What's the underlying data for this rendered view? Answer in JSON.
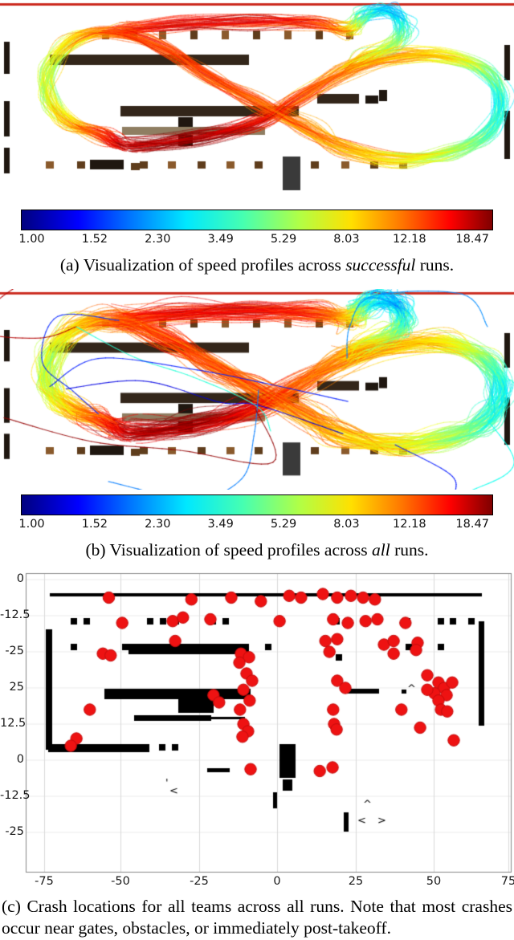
{
  "palette": {
    "b": "#8a5a2c",
    "b2": "#5f3d1c",
    "d": "#1f1710",
    "t": "#33261a",
    "g2": "#8f7e62",
    "g": "#3a3a3a",
    "r": "#cc2a1e",
    "crash_red": "#ee1212",
    "map_black": "#000000",
    "grid": "#d9d9d9"
  },
  "captions": {
    "a": {
      "prefix": "(a) Visualization of speed profiles across ",
      "emph": "successful",
      "suffix": " runs."
    },
    "b": {
      "prefix": "(b) Visualization of speed profiles across ",
      "emph": "all",
      "suffix": " runs."
    },
    "c": "(c) Crash locations for all teams across all runs. Note that most crashes occur near gates, obstacles, or immediately post-takeoff."
  },
  "colorbar": {
    "ticks": [
      "1.00",
      "1.52",
      "2.30",
      "3.49",
      "5.29",
      "8.03",
      "12.18",
      "18.47"
    ],
    "vmin": 1.0,
    "vmax": 18.47,
    "scale": "log",
    "colormap": "jet",
    "quantity": "speed"
  },
  "arena": {
    "map_obstacles": [
      [
        0,
        4,
        640,
        3,
        "r"
      ],
      [
        127,
        38,
        9,
        11,
        "b"
      ],
      [
        162,
        38,
        9,
        11,
        "b2"
      ],
      [
        198,
        38,
        9,
        11,
        "b"
      ],
      [
        237,
        38,
        9,
        11,
        "b2"
      ],
      [
        276,
        38,
        9,
        11,
        "b"
      ],
      [
        315,
        38,
        9,
        11,
        "b2"
      ],
      [
        354,
        38,
        9,
        11,
        "b"
      ],
      [
        393,
        38,
        9,
        11,
        "b2"
      ],
      [
        431,
        38,
        9,
        11,
        "b"
      ],
      [
        5,
        52,
        7,
        40,
        "d"
      ],
      [
        5,
        126,
        7,
        44,
        "d"
      ],
      [
        5,
        184,
        7,
        32,
        "d"
      ],
      [
        628,
        56,
        7,
        44,
        "d"
      ],
      [
        628,
        138,
        7,
        60,
        "d"
      ],
      [
        62,
        68,
        248,
        13,
        "t"
      ],
      [
        150,
        132,
        222,
        13,
        "t"
      ],
      [
        395,
        117,
        52,
        12,
        "t"
      ],
      [
        455,
        119,
        16,
        10,
        "d"
      ],
      [
        472,
        112,
        10,
        14,
        "d"
      ],
      [
        222,
        146,
        18,
        36,
        "d"
      ],
      [
        152,
        158,
        178,
        10,
        "g2"
      ],
      [
        57,
        201,
        10,
        9,
        "b"
      ],
      [
        96,
        201,
        10,
        9,
        "b2"
      ],
      [
        135,
        201,
        10,
        9,
        "b"
      ],
      [
        174,
        201,
        10,
        9,
        "b2"
      ],
      [
        209,
        201,
        10,
        9,
        "b"
      ],
      [
        246,
        201,
        10,
        9,
        "b2"
      ],
      [
        282,
        201,
        10,
        9,
        "b"
      ],
      [
        317,
        201,
        10,
        9,
        "b2"
      ],
      [
        352,
        201,
        10,
        9,
        "b"
      ],
      [
        387,
        201,
        10,
        9,
        "b2"
      ],
      [
        425,
        201,
        10,
        9,
        "b"
      ],
      [
        461,
        201,
        10,
        9,
        "b2"
      ],
      [
        497,
        201,
        10,
        9,
        "b"
      ],
      [
        112,
        199,
        42,
        12,
        "d"
      ],
      [
        163,
        203,
        11,
        9,
        "b2"
      ],
      [
        352,
        195,
        22,
        42,
        "g"
      ]
    ],
    "track_waypoints": [
      [
        162,
        181,
        15
      ],
      [
        245,
        171,
        17
      ],
      [
        318,
        152,
        13
      ],
      [
        372,
        122,
        10
      ],
      [
        432,
        88,
        8.5
      ],
      [
        497,
        70,
        7.5
      ],
      [
        558,
        70,
        6.5
      ],
      [
        606,
        90,
        4.2
      ],
      [
        624,
        128,
        3.0
      ],
      [
        607,
        166,
        3.4
      ],
      [
        558,
        190,
        4.8
      ],
      [
        492,
        198,
        6.2
      ],
      [
        427,
        184,
        7.5
      ],
      [
        383,
        160,
        8.5
      ],
      [
        322,
        128,
        9.5
      ],
      [
        262,
        96,
        10
      ],
      [
        205,
        62,
        10.5
      ],
      [
        148,
        40,
        10
      ],
      [
        95,
        48,
        7
      ],
      [
        62,
        86,
        5
      ],
      [
        62,
        124,
        5.2
      ],
      [
        88,
        152,
        7
      ],
      [
        128,
        168,
        10.5
      ]
    ],
    "top_loop_waypoints": [
      [
        150,
        38,
        10
      ],
      [
        225,
        30,
        12.5
      ],
      [
        310,
        27,
        13
      ],
      [
        390,
        28,
        11
      ],
      [
        435,
        38,
        7
      ],
      [
        450,
        22,
        3.5
      ],
      [
        472,
        12,
        2.6
      ],
      [
        494,
        18,
        2.4
      ],
      [
        503,
        38,
        3.2
      ],
      [
        488,
        58,
        4.5
      ],
      [
        455,
        72,
        6
      ],
      [
        430,
        86,
        7.5
      ]
    ]
  },
  "chart_data": [
    {
      "id": "speed_successful",
      "type": "line",
      "title": "Speed profiles across successful runs",
      "colormap": "jet",
      "speed_min": 1.0,
      "speed_max": 18.47,
      "speed_ticks": [
        1.0,
        1.52,
        2.3,
        3.49,
        5.29,
        8.03,
        12.18,
        18.47
      ],
      "n_trajectories": 55,
      "jitter": 5,
      "n_strays": 0
    },
    {
      "id": "speed_all_runs",
      "type": "line",
      "title": "Speed profiles across all runs",
      "colormap": "jet",
      "speed_min": 1.0,
      "speed_max": 18.47,
      "speed_ticks": [
        1.0,
        1.52,
        2.3,
        3.49,
        5.29,
        8.03,
        12.18,
        18.47
      ],
      "n_trajectories": 85,
      "jitter": 8,
      "n_strays": 10
    },
    {
      "id": "crash_locations",
      "type": "scatter",
      "title": "Crash locations for all teams across all runs",
      "marker": "red-dot",
      "x_axis": {
        "ticks": [
          "-75",
          "-50",
          "-25",
          "0",
          "25",
          "50",
          "75"
        ]
      },
      "y_axis": {
        "ticks": [
          "0",
          "-12.5",
          "-25",
          "25",
          "12.5",
          "0",
          "-12.5",
          "-25"
        ],
        "note": "labels top to bottom, evenly spaced gridlines; crash y given in gridline units from top tick"
      },
      "points": [
        [
          -54,
          0.5
        ],
        [
          -27.5,
          0.55
        ],
        [
          -14.7,
          0.5
        ],
        [
          -5.2,
          0.6
        ],
        [
          3.9,
          0.45
        ],
        [
          7.7,
          0.5
        ],
        [
          14.7,
          0.4
        ],
        [
          19.3,
          0.5
        ],
        [
          23.7,
          0.45
        ],
        [
          27.6,
          0.5
        ],
        [
          31.4,
          0.55
        ],
        [
          -49.7,
          1.2
        ],
        [
          -33.5,
          1.15
        ],
        [
          -30.2,
          1.05
        ],
        [
          -21.4,
          1.1
        ],
        [
          0.8,
          1.15
        ],
        [
          18,
          1.1
        ],
        [
          22.7,
          1.2
        ],
        [
          28.4,
          1.15
        ],
        [
          32.2,
          1.1
        ],
        [
          41.2,
          1.2
        ],
        [
          -32.7,
          1.7
        ],
        [
          15.5,
          1.7
        ],
        [
          19.3,
          1.65
        ],
        [
          34.3,
          1.8
        ],
        [
          37.4,
          1.7
        ],
        [
          45.1,
          1.75
        ],
        [
          -55.9,
          2.05
        ],
        [
          -53.4,
          2.1
        ],
        [
          -11.6,
          2.05
        ],
        [
          -9,
          2.15
        ],
        [
          16.8,
          2.0
        ],
        [
          37.4,
          2.05
        ],
        [
          44.6,
          1.95
        ],
        [
          -12.1,
          2.3
        ],
        [
          -9.8,
          2.6
        ],
        [
          -8,
          2.8
        ],
        [
          -10.8,
          3.05
        ],
        [
          -8.8,
          3.35
        ],
        [
          -11.9,
          3.6
        ],
        [
          -20.4,
          3.2
        ],
        [
          -18.6,
          3.4
        ],
        [
          19.3,
          2.8
        ],
        [
          21.9,
          3.0
        ],
        [
          48.2,
          2.65
        ],
        [
          51.8,
          2.85
        ],
        [
          53.6,
          3.0
        ],
        [
          50.5,
          3.15
        ],
        [
          54.4,
          3.2
        ],
        [
          51.8,
          3.35
        ],
        [
          56.2,
          2.85
        ],
        [
          48.2,
          3.05
        ],
        [
          -60.1,
          3.6
        ],
        [
          18,
          3.6
        ],
        [
          39.9,
          3.6
        ],
        [
          52.6,
          3.6
        ],
        [
          54.6,
          3.65
        ],
        [
          -10.8,
          4.0
        ],
        [
          -9.3,
          4.2
        ],
        [
          18.3,
          4.0
        ],
        [
          19.1,
          4.15
        ],
        [
          45.9,
          4.1
        ],
        [
          -64.4,
          4.4
        ],
        [
          -66.2,
          4.6
        ],
        [
          -11.1,
          4.35
        ],
        [
          56.7,
          4.45
        ],
        [
          13.7,
          5.3
        ],
        [
          17.8,
          5.2
        ],
        [
          -8.5,
          5.25
        ]
      ],
      "map_rects": [
        [
          62,
          30,
          538,
          4
        ],
        [
          57,
          75,
          8,
          150
        ],
        [
          596,
          65,
          7,
          130
        ],
        [
          88,
          61,
          8,
          8
        ],
        [
          104,
          61,
          8,
          8
        ],
        [
          183,
          61,
          8,
          8
        ],
        [
          199,
          61,
          8,
          8
        ],
        [
          215,
          61,
          8,
          8
        ],
        [
          261,
          61,
          8,
          8
        ],
        [
          277,
          61,
          8,
          8
        ],
        [
          415,
          61,
          8,
          8
        ],
        [
          503,
          61,
          8,
          8
        ],
        [
          545,
          61,
          8,
          8
        ],
        [
          560,
          61,
          8,
          8
        ],
        [
          583,
          61,
          8,
          8
        ],
        [
          88,
          93,
          8,
          8
        ],
        [
          152,
          93,
          8,
          8
        ],
        [
          186,
          93,
          8,
          8
        ],
        [
          330,
          93,
          8,
          8
        ],
        [
          505,
          93,
          8,
          8
        ],
        [
          545,
          93,
          8,
          8
        ],
        [
          160,
          93,
          150,
          13
        ],
        [
          130,
          149,
          182,
          13
        ],
        [
          222,
          149,
          44,
          30
        ],
        [
          167,
          182,
          96,
          7
        ],
        [
          263,
          184,
          42,
          3
        ],
        [
          60,
          218,
          126,
          10
        ],
        [
          198,
          218,
          8,
          8
        ],
        [
          214,
          218,
          8,
          8
        ],
        [
          348,
          218,
          20,
          42
        ],
        [
          352,
          262,
          12,
          14
        ],
        [
          432,
          149,
          40,
          6
        ],
        [
          418,
          106,
          8,
          8
        ],
        [
          500,
          150,
          6,
          5
        ],
        [
          258,
          248,
          28,
          5
        ],
        [
          340,
          278,
          5,
          20
        ],
        [
          428,
          303,
          6,
          24
        ]
      ],
      "map_glyphs": [
        [
          "^",
          507,
          153
        ],
        [
          "^",
          452,
          297
        ],
        [
          "<",
          445,
          317
        ],
        [
          ">",
          470,
          317
        ],
        [
          "'",
          206,
          270
        ],
        [
          "<",
          211,
          280
        ]
      ]
    }
  ]
}
